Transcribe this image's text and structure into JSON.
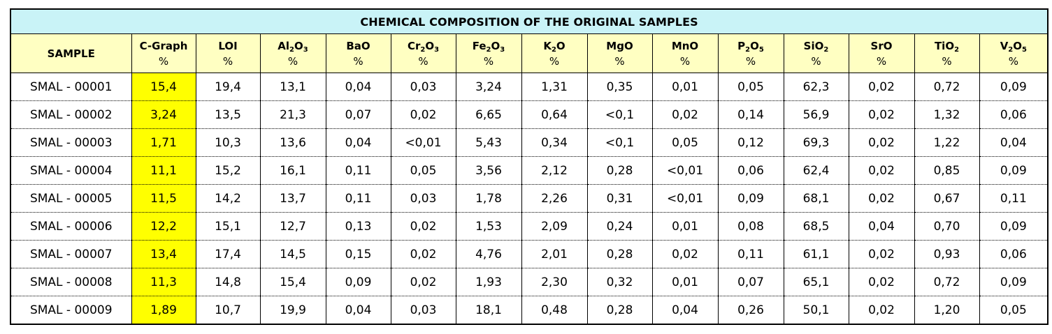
{
  "title": "CHEMICAL COMPOSITION OF THE ORIGINAL SAMPLES",
  "columns": [
    {
      "label": "SAMPLE",
      "unit": ""
    },
    {
      "label": "C-Graph",
      "unit": "%"
    },
    {
      "label": "LOI",
      "unit": "%"
    },
    {
      "label": "Al",
      "sub1": "2",
      "mid": "O",
      "sub2": "3",
      "unit": "%"
    },
    {
      "label": "BaO",
      "unit": "%"
    },
    {
      "label": "Cr",
      "sub1": "2",
      "mid": "O",
      "sub2": "3",
      "unit": "%"
    },
    {
      "label": "Fe",
      "sub1": "2",
      "mid": "O",
      "sub2": "3",
      "unit": "%"
    },
    {
      "label": "K",
      "sub1": "2",
      "mid": "O",
      "unit": "%"
    },
    {
      "label": "MgO",
      "unit": "%"
    },
    {
      "label": "MnO",
      "unit": "%"
    },
    {
      "label": "P",
      "sub1": "2",
      "mid": "O",
      "sub2": "5",
      "unit": "%"
    },
    {
      "label": "SiO",
      "sub1": "2",
      "unit": "%"
    },
    {
      "label": "SrO",
      "unit": "%"
    },
    {
      "label": "TiO",
      "sub1": "2",
      "unit": "%"
    },
    {
      "label": "V",
      "sub1": "2",
      "mid": "O",
      "sub2": "5",
      "unit": "%"
    }
  ],
  "rows": [
    [
      "SMAL - 00001",
      "15,4",
      "19,4",
      "13,1",
      "0,04",
      "0,03",
      "3,24",
      "1,31",
      "0,35",
      "0,01",
      "0,05",
      "62,3",
      "0,02",
      "0,72",
      "0,09"
    ],
    [
      "SMAL - 00002",
      "3,24",
      "13,5",
      "21,3",
      "0,07",
      "0,02",
      "6,65",
      "0,64",
      "<0,1",
      "0,02",
      "0,14",
      "56,9",
      "0,02",
      "1,32",
      "0,06"
    ],
    [
      "SMAL - 00003",
      "1,71",
      "10,3",
      "13,6",
      "0,04",
      "<0,01",
      "5,43",
      "0,34",
      "<0,1",
      "0,05",
      "0,12",
      "69,3",
      "0,02",
      "1,22",
      "0,04"
    ],
    [
      "SMAL - 00004",
      "11,1",
      "15,2",
      "16,1",
      "0,11",
      "0,05",
      "3,56",
      "2,12",
      "0,28",
      "<0,01",
      "0,06",
      "62,4",
      "0,02",
      "0,85",
      "0,09"
    ],
    [
      "SMAL - 00005",
      "11,5",
      "14,2",
      "13,7",
      "0,11",
      "0,03",
      "1,78",
      "2,26",
      "0,31",
      "<0,01",
      "0,09",
      "68,1",
      "0,02",
      "0,67",
      "0,11"
    ],
    [
      "SMAL - 00006",
      "12,2",
      "15,1",
      "12,7",
      "0,13",
      "0,02",
      "1,53",
      "2,09",
      "0,24",
      "0,01",
      "0,08",
      "68,5",
      "0,04",
      "0,70",
      "0,09"
    ],
    [
      "SMAL - 00007",
      "13,4",
      "17,4",
      "14,5",
      "0,15",
      "0,02",
      "4,76",
      "2,01",
      "0,28",
      "0,02",
      "0,11",
      "61,1",
      "0,02",
      "0,93",
      "0,06"
    ],
    [
      "SMAL - 00008",
      "11,3",
      "14,8",
      "15,4",
      "0,09",
      "0,02",
      "1,93",
      "2,30",
      "0,32",
      "0,01",
      "0,07",
      "65,1",
      "0,02",
      "0,72",
      "0,09"
    ],
    [
      "SMAL - 00009",
      "1,89",
      "10,7",
      "19,9",
      "0,04",
      "0,03",
      "18,1",
      "0,48",
      "0,28",
      "0,04",
      "0,26",
      "50,1",
      "0,02",
      "1,20",
      "0,05"
    ]
  ],
  "colors": {
    "title_bg": "#c9f3f7",
    "header_bg": "#ffffc2",
    "highlight": "#ffff00"
  }
}
